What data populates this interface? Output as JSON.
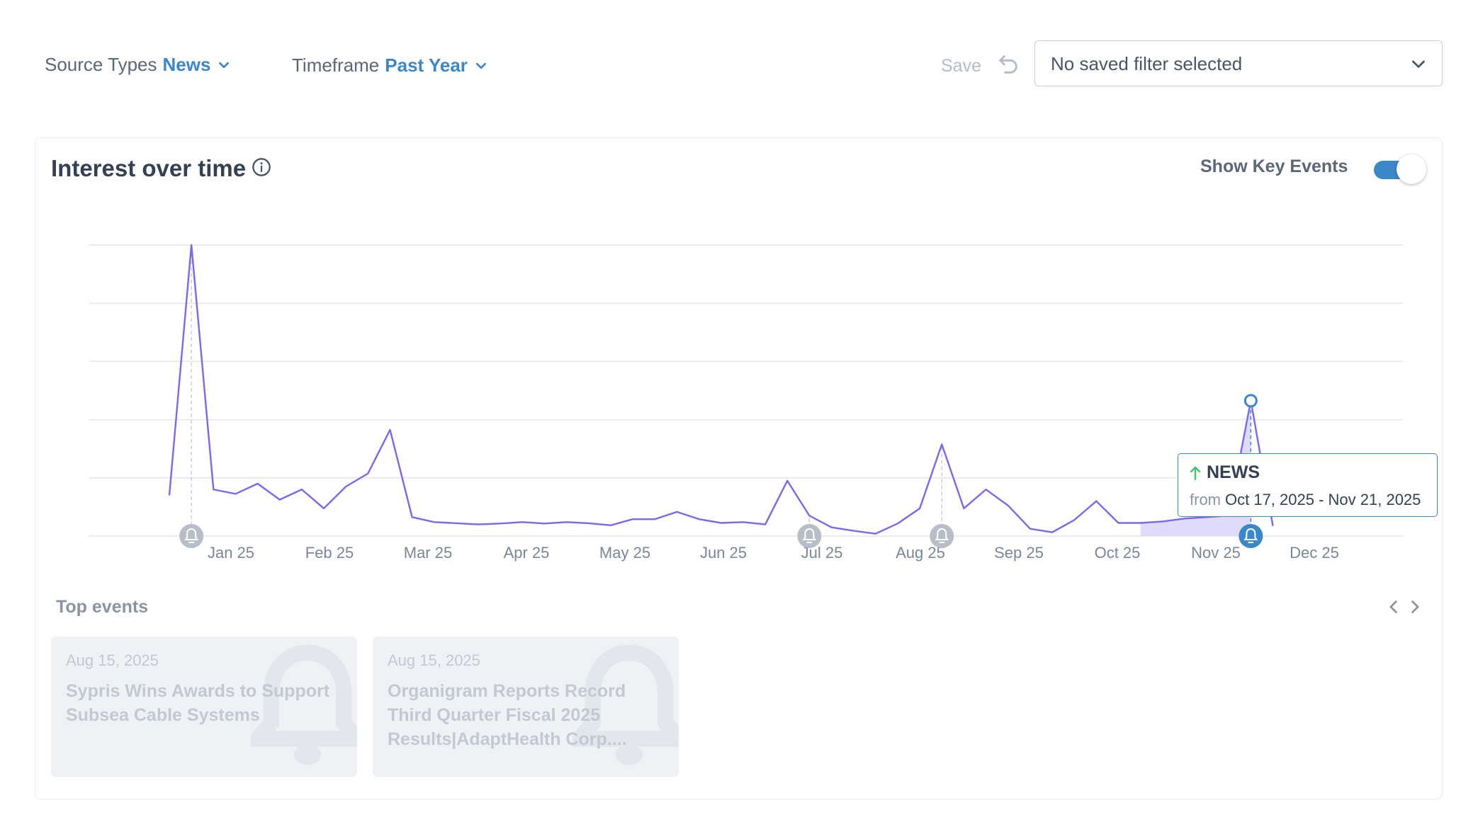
{
  "filters": {
    "source_types": {
      "label": "Source Types",
      "value": "News"
    },
    "timeframe": {
      "label": "Timeframe",
      "value": "Past Year"
    },
    "save_label": "Save",
    "saved_filter": "No saved filter selected"
  },
  "card": {
    "title": "Interest over time",
    "show_key_events_label": "Show Key Events",
    "show_key_events_on": true
  },
  "chart_data": {
    "type": "line",
    "title": "Interest over time",
    "x_tick_labels": [
      "Jan 25",
      "Feb 25",
      "Mar 25",
      "Apr 25",
      "May 25",
      "Jun 25",
      "Jul 25",
      "Aug 25",
      "Sep 25",
      "Oct 25",
      "Nov 25",
      "Dec 25"
    ],
    "y_range": [
      0,
      100
    ],
    "y_gridlines": [
      0,
      20,
      40,
      60,
      80,
      100
    ],
    "series": [
      {
        "values": [
          14,
          100,
          16,
          14.5,
          18,
          12.5,
          16,
          9.5,
          17,
          21.5,
          36.5,
          6.5,
          4.8,
          4.4,
          4,
          4.3,
          4.8,
          4.3,
          4.8,
          4.4,
          3.7,
          5.8,
          5.8,
          8.3,
          5.8,
          4.5,
          4.8,
          4,
          19,
          7,
          3,
          1.8,
          0.8,
          4.3,
          9.5,
          31.5,
          9.5,
          16,
          10.5,
          2.5,
          1.3,
          5.5,
          12,
          4.5,
          4.5,
          5,
          6,
          6.5,
          7,
          46.5,
          3.5
        ]
      }
    ],
    "highlight": {
      "label": "NEWS",
      "from_label": "from",
      "range": "Oct 17, 2025 - Nov 21, 2025",
      "trend": "up"
    },
    "key_event_indices": [
      1,
      29,
      35,
      49
    ],
    "active_event_index": 49,
    "grid": true
  },
  "top_events": {
    "title": "Top events",
    "items": [
      {
        "date": "Aug 15, 2025",
        "title": "Sypris Wins Awards to Support Subsea Cable Systems"
      },
      {
        "date": "Aug 15, 2025",
        "title": "Organigram Reports Record Third Quarter Fiscal 2025 Results|AdaptHealth Corp...."
      }
    ]
  },
  "colors": {
    "accent": "#3b87c8",
    "line": "#7b68ee",
    "fill": "#d9d2fa",
    "event_marker": "#b8bec8",
    "grid": "#e3e7ec",
    "trend_up": "#3cc76a"
  }
}
